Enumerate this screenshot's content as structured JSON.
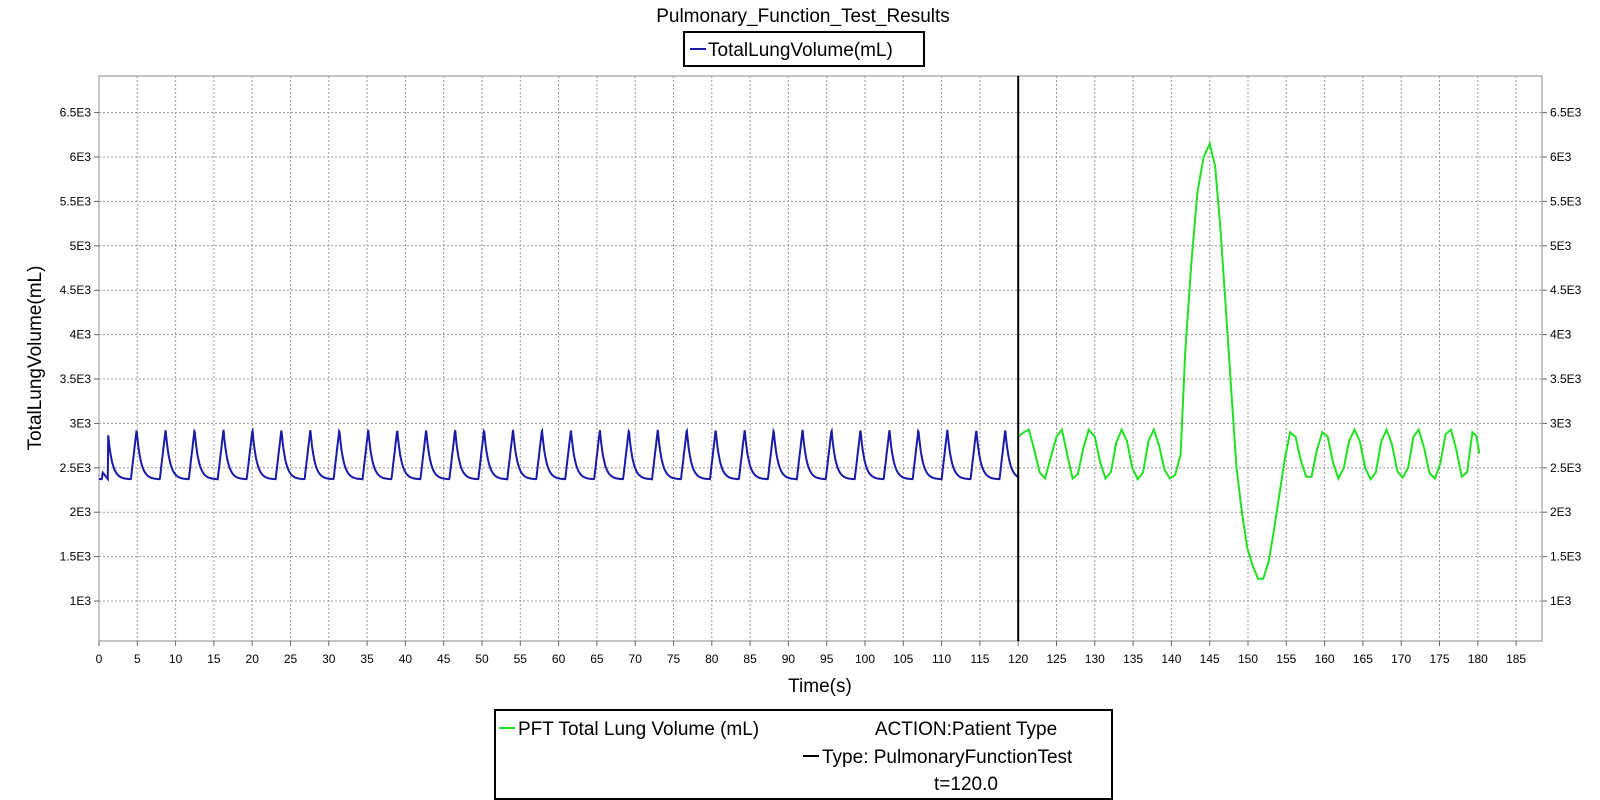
{
  "chart_data": {
    "type": "line",
    "title": "Pulmonary_Function_Test_Results",
    "xlabel": "Time(s)",
    "ylabel": "TotalLungVolume(mL)",
    "xlim": [
      0,
      188
    ],
    "ylim": [
      500,
      6900
    ],
    "x_ticks": [
      "0",
      "5",
      "10",
      "15",
      "20",
      "25",
      "30",
      "35",
      "40",
      "45",
      "50",
      "55",
      "60",
      "65",
      "70",
      "75",
      "80",
      "85",
      "90",
      "95",
      "100",
      "105",
      "110",
      "115",
      "120",
      "125",
      "130",
      "135",
      "140",
      "145",
      "150",
      "155",
      "160",
      "165",
      "170",
      "175",
      "180",
      "185"
    ],
    "y_ticks": [
      "1E3",
      "1.5E3",
      "2E3",
      "2.5E3",
      "3E3",
      "3.5E3",
      "4E3",
      "4.5E3",
      "5E3",
      "5.5E3",
      "6E3",
      "6.5E3"
    ],
    "grid": true,
    "top_legend": [
      "TotalLungVolume(mL)"
    ],
    "series": [
      {
        "name": "TotalLungVolume(mL)",
        "color": "#1a1aa8",
        "breath_period": 3.78,
        "x_range": [
          0,
          120
        ],
        "min_value": 2370,
        "max_value": 2930
      },
      {
        "name": "PFT Total Lung Volume (mL)",
        "color": "#22e022",
        "points": [
          [
            120,
            2850
          ],
          [
            120.7,
            2900
          ],
          [
            121.4,
            2930
          ],
          [
            122.1,
            2700
          ],
          [
            122.8,
            2450
          ],
          [
            123.5,
            2380
          ],
          [
            124.2,
            2600
          ],
          [
            125,
            2850
          ],
          [
            125.7,
            2930
          ],
          [
            126.4,
            2650
          ],
          [
            127.1,
            2380
          ],
          [
            127.8,
            2430
          ],
          [
            128.5,
            2720
          ],
          [
            129.2,
            2930
          ],
          [
            130,
            2850
          ],
          [
            130.7,
            2560
          ],
          [
            131.4,
            2380
          ],
          [
            132.1,
            2450
          ],
          [
            132.8,
            2780
          ],
          [
            133.5,
            2930
          ],
          [
            134.2,
            2800
          ],
          [
            134.9,
            2500
          ],
          [
            135.6,
            2370
          ],
          [
            136.3,
            2450
          ],
          [
            137,
            2800
          ],
          [
            137.7,
            2930
          ],
          [
            138.4,
            2750
          ],
          [
            139.1,
            2480
          ],
          [
            139.8,
            2380
          ],
          [
            140.5,
            2420
          ],
          [
            141.2,
            2650
          ],
          [
            141.8,
            3800
          ],
          [
            142.6,
            4800
          ],
          [
            143.4,
            5600
          ],
          [
            144.2,
            6000
          ],
          [
            145,
            6150
          ],
          [
            145.7,
            5900
          ],
          [
            146.4,
            5200
          ],
          [
            147.1,
            4300
          ],
          [
            147.8,
            3400
          ],
          [
            148.5,
            2500
          ],
          [
            149.2,
            2000
          ],
          [
            149.9,
            1600
          ],
          [
            150.6,
            1400
          ],
          [
            151.3,
            1250
          ],
          [
            152,
            1250
          ],
          [
            152.7,
            1450
          ],
          [
            153.4,
            1800
          ],
          [
            154.1,
            2200
          ],
          [
            154.8,
            2600
          ],
          [
            155.5,
            2900
          ],
          [
            156.2,
            2850
          ],
          [
            156.9,
            2580
          ],
          [
            157.6,
            2400
          ],
          [
            158.3,
            2400
          ],
          [
            159,
            2700
          ],
          [
            159.7,
            2900
          ],
          [
            160.4,
            2850
          ],
          [
            161.1,
            2560
          ],
          [
            161.8,
            2380
          ],
          [
            162.5,
            2500
          ],
          [
            163.2,
            2800
          ],
          [
            163.9,
            2930
          ],
          [
            164.6,
            2800
          ],
          [
            165.3,
            2500
          ],
          [
            166,
            2370
          ],
          [
            166.7,
            2450
          ],
          [
            167.4,
            2800
          ],
          [
            168.1,
            2930
          ],
          [
            168.8,
            2760
          ],
          [
            169.5,
            2460
          ],
          [
            170.2,
            2390
          ],
          [
            170.9,
            2500
          ],
          [
            171.6,
            2850
          ],
          [
            172.3,
            2930
          ],
          [
            173,
            2720
          ],
          [
            173.7,
            2440
          ],
          [
            174.4,
            2380
          ],
          [
            175.1,
            2550
          ],
          [
            175.8,
            2880
          ],
          [
            176.5,
            2930
          ],
          [
            177.2,
            2700
          ],
          [
            177.9,
            2400
          ],
          [
            178.6,
            2450
          ],
          [
            179.3,
            2900
          ],
          [
            179.8,
            2860
          ],
          [
            180.2,
            2660
          ]
        ]
      }
    ],
    "event_line": {
      "x": 120,
      "color": "#000000"
    },
    "bottom_legend": {
      "series_label": "PFT Total Lung Volume (mL)",
      "action_line1": "ACTION:Patient Type",
      "action_line2": "Type: PulmonaryFunctionTest",
      "action_line3": "t=120.0"
    }
  }
}
